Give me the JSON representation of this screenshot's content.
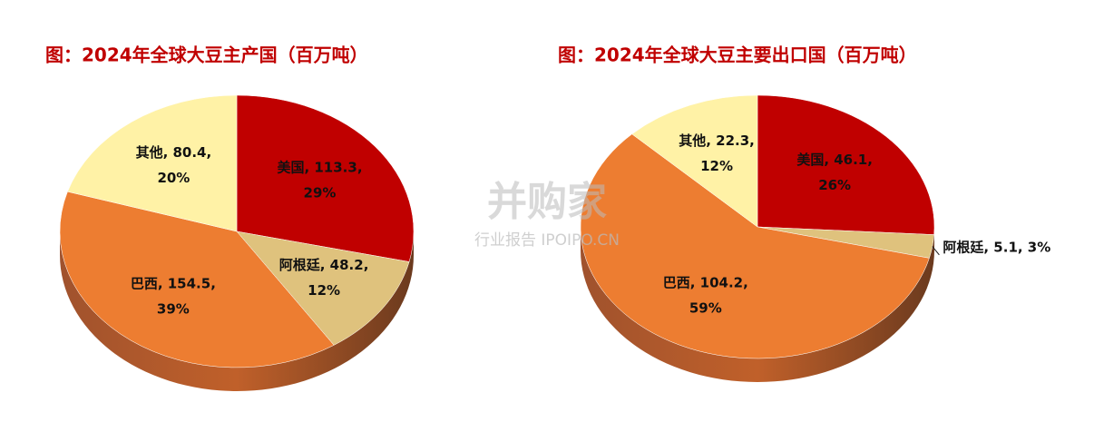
{
  "chart_data": [
    {
      "type": "pie",
      "title": "图：2024年全球大豆主产国（百万吨）",
      "categories": [
        "美国",
        "阿根廷",
        "巴西",
        "其他"
      ],
      "values": [
        113.3,
        48.2,
        154.5,
        80.4
      ],
      "percents": [
        29,
        12,
        39,
        20
      ],
      "labels": [
        [
          "美国, 113.3,",
          "29%"
        ],
        [
          "阿根廷, 48.2,",
          "12%"
        ],
        [
          "巴西, 154.5,",
          "39%"
        ],
        [
          "其他, 80.4,",
          "20%"
        ]
      ],
      "colors": [
        "#c00000",
        "#dfc27d",
        "#ed7d31",
        "#fff2a6"
      ]
    },
    {
      "type": "pie",
      "title": "图：2024年全球大豆主要出口国（百万吨）",
      "categories": [
        "美国",
        "阿根廷",
        "巴西",
        "其他"
      ],
      "values": [
        46.1,
        5.1,
        104.2,
        22.3
      ],
      "percents": [
        26,
        3,
        59,
        12
      ],
      "labels": [
        [
          "美国, 46.1,",
          "26%"
        ],
        [
          "阿根廷, 5.1, 3%"
        ],
        [
          "巴西, 104.2,",
          "59%"
        ],
        [
          "其他, 22.3,",
          "12%"
        ]
      ],
      "colors": [
        "#c00000",
        "#dfc27d",
        "#ed7d31",
        "#fff2a6"
      ]
    }
  ],
  "watermark": {
    "brand": "并购家",
    "sub": "行业报告 IPOIPO.CN"
  }
}
